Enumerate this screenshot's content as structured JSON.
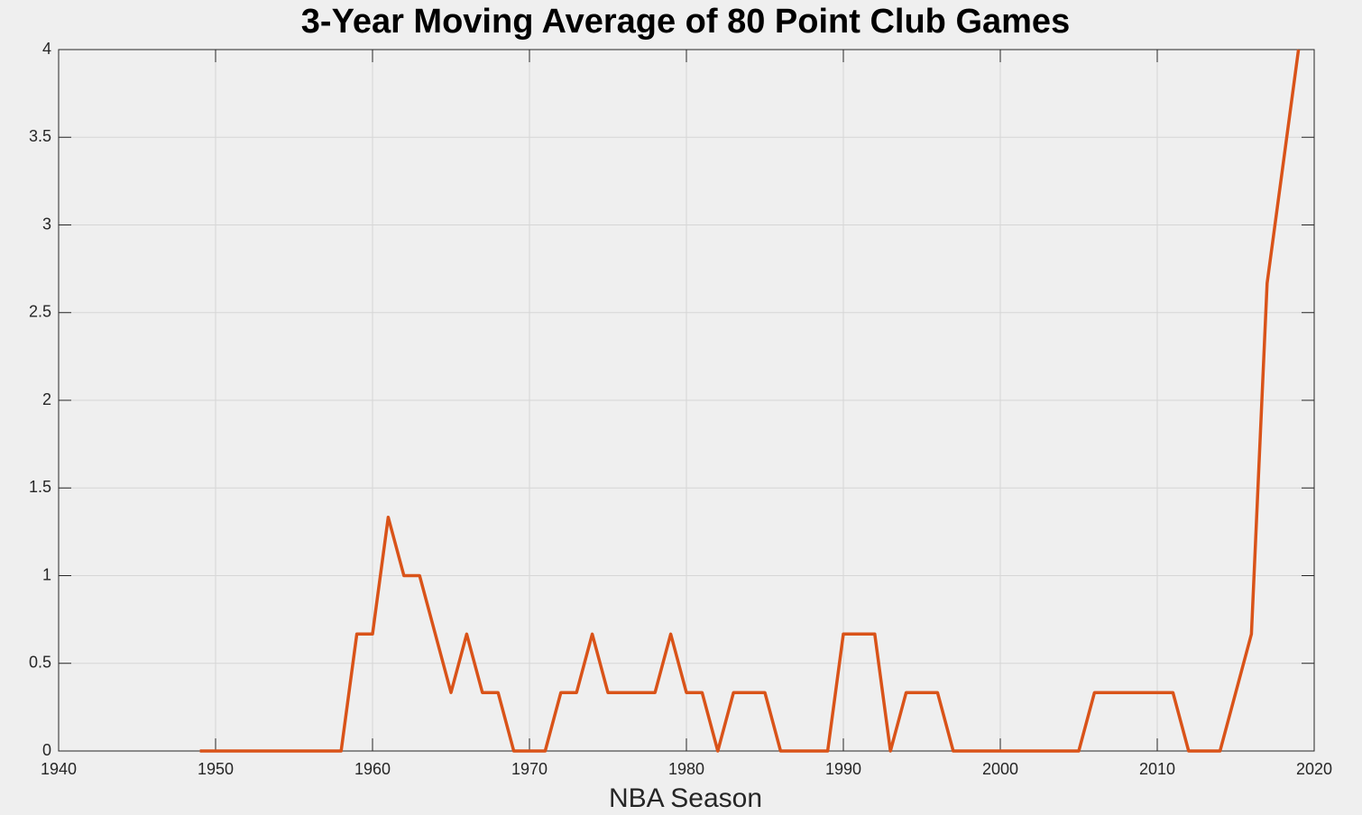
{
  "chart_data": {
    "type": "line",
    "title": "3-Year Moving Average of 80 Point Club Games",
    "x_label": "NBA Season",
    "x": [
      1949,
      1950,
      1951,
      1952,
      1953,
      1954,
      1955,
      1956,
      1957,
      1958,
      1959,
      1960,
      1961,
      1962,
      1963,
      1964,
      1965,
      1966,
      1967,
      1968,
      1969,
      1970,
      1971,
      1972,
      1973,
      1974,
      1975,
      1976,
      1977,
      1978,
      1979,
      1980,
      1981,
      1982,
      1983,
      1984,
      1985,
      1986,
      1987,
      1988,
      1989,
      1990,
      1991,
      1992,
      1993,
      1994,
      1995,
      1996,
      1997,
      1998,
      1999,
      2000,
      2001,
      2002,
      2003,
      2004,
      2005,
      2006,
      2007,
      2008,
      2009,
      2010,
      2011,
      2012,
      2013,
      2014,
      2015,
      2016,
      2017,
      2018,
      2019
    ],
    "series": [
      {
        "color": "#d95319",
        "values": [
          0,
          0,
          0,
          0,
          0,
          0,
          0,
          0,
          0,
          0,
          0.667,
          0.667,
          1.333,
          1,
          1,
          0.667,
          0.333,
          0.667,
          0.333,
          0.333,
          0,
          0,
          0,
          0.333,
          0.333,
          0.667,
          0.333,
          0.333,
          0.333,
          0.333,
          0.667,
          0.333,
          0.333,
          0,
          0.333,
          0.333,
          0.333,
          0,
          0,
          0,
          0,
          0.667,
          0.667,
          0.667,
          0,
          0.333,
          0.333,
          0.333,
          0,
          0,
          0,
          0,
          0,
          0,
          0,
          0,
          0,
          0.333,
          0.333,
          0.333,
          0.333,
          0.333,
          0.333,
          0,
          0,
          0,
          0.333,
          0.667,
          2.667,
          3.333,
          4
        ]
      }
    ],
    "xlim": [
      1940,
      2020
    ],
    "xticks": [
      1940,
      1950,
      1960,
      1970,
      1980,
      1990,
      2000,
      2010,
      2020
    ],
    "ylim": [
      0,
      4
    ],
    "yticks": [
      0,
      0.5,
      1,
      1.5,
      2,
      2.5,
      3,
      3.5,
      4
    ],
    "grid": true
  }
}
